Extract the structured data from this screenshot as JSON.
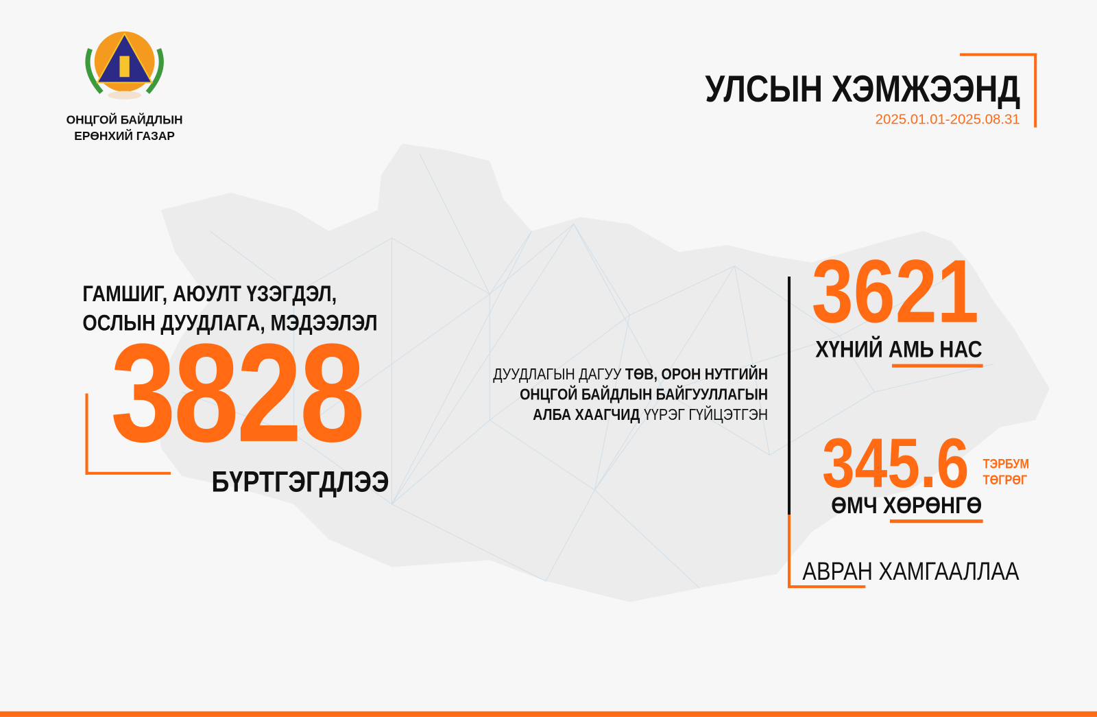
{
  "logo": {
    "name_line1": "ОНЦГОЙ БАЙДЛЫН",
    "name_line2": "ЕРӨНХИЙ ГАЗАР",
    "icon": "emergency-agency-emblem"
  },
  "header": {
    "title": "УЛСЫН ХЭМЖЭЭНД",
    "period": "2025.01.01-2025.08.31"
  },
  "left": {
    "heading_line1": "ГАМШИГ, АЮУЛТ ҮЗЭГДЭЛ,",
    "heading_line2": "ОСЛЫН ДУУДЛАГА, МЭДЭЭЛЭЛ",
    "number": "3828",
    "caption": "БҮРТГЭГДЛЭЭ"
  },
  "middle": {
    "line1_normal": "ДУУДЛАГЫН ДАГУУ ",
    "line1_bold": "ТӨВ, ОРОН НУТГИЙН",
    "line2_bold": "ОНЦГОЙ БАЙДЛЫН БАЙГУУЛЛАГЫН",
    "line3_bold": "АЛБА ХААГЧИД ",
    "line3_normal": "ҮҮРЭГ ГҮЙЦЭТГЭН"
  },
  "right": {
    "lives_number": "3621",
    "lives_label": "ХҮНИЙ АМЬ НАС",
    "property_number": "345.6",
    "property_unit_line1": "ТЭРБУМ",
    "property_unit_line2": "ТӨГРӨГ",
    "property_label": "ӨМЧ ХӨРӨНГӨ",
    "footer": "АВРАН ХАМГААЛЛАА"
  },
  "colors": {
    "accent": "#ff6a13",
    "text": "#111111",
    "background": "#f7f7f7",
    "map": "#ebebeb"
  }
}
